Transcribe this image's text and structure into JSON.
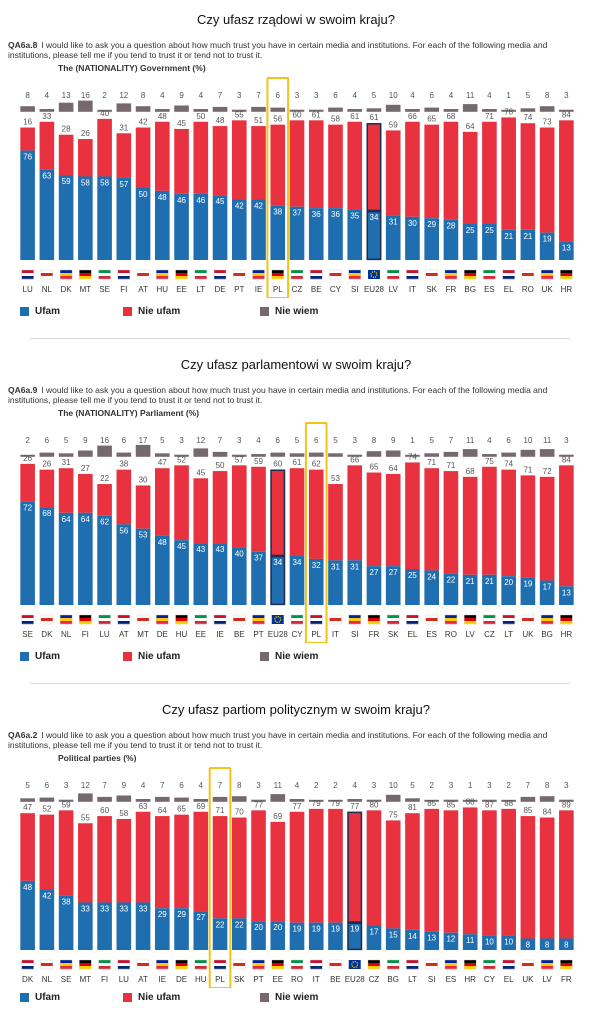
{
  "colors": {
    "trust": "#1f6fb0",
    "distrust": "#e8323f",
    "dk": "#75696f",
    "pl_frame": "#f2c318",
    "eu_frame": "#1d2d52"
  },
  "legend": {
    "trust": "Ufam",
    "distrust": "Nie ufam",
    "dk": "Nie wiem"
  },
  "panels": [
    {
      "title": "Czy ufasz rządowi w swoim kraju?",
      "qid": "QA6a.8",
      "question": "I would like to ask you a question about how much trust you have in certain media and institutions. For each of the following media and institutions, please tell me if you tend to trust it or tend not to trust it.",
      "subtitle": "The (NATIONALITY) Government  (%)",
      "chart_data": {
        "type": "bar",
        "stacked": true,
        "categories": [
          "LU",
          "NL",
          "DK",
          "MT",
          "SE",
          "FI",
          "AT",
          "HU",
          "EE",
          "LT",
          "DE",
          "PT",
          "IE",
          "PL",
          "CZ",
          "BE",
          "CY",
          "SI",
          "EU28",
          "LV",
          "IT",
          "SK",
          "FR",
          "BG",
          "ES",
          "EL",
          "RO",
          "UK",
          "HR"
        ],
        "series": [
          {
            "name": "Ufam",
            "values": [
              76,
              63,
              59,
              58,
              58,
              57,
              50,
              48,
              46,
              46,
              45,
              42,
              42,
              38,
              37,
              36,
              36,
              35,
              34,
              31,
              30,
              29,
              28,
              25,
              25,
              21,
              21,
              19,
              13
            ]
          },
          {
            "name": "Nie ufam",
            "values": [
              16,
              33,
              28,
              26,
              40,
              31,
              42,
              48,
              45,
              50,
              48,
              55,
              51,
              56,
              60,
              61,
              58,
              61,
              61,
              59,
              66,
              65,
              68,
              64,
              71,
              78,
              74,
              73,
              84
            ]
          },
          {
            "name": "Nie wiem",
            "values": [
              8,
              4,
              13,
              16,
              2,
              12,
              8,
              4,
              9,
              4,
              7,
              3,
              7,
              6,
              3,
              3,
              6,
              4,
              5,
              10,
              4,
              6,
              4,
              11,
              4,
              1,
              5,
              8,
              3
            ]
          }
        ],
        "highlight": "PL",
        "reference": "EU28"
      }
    },
    {
      "title": "Czy ufasz parlamentowi w swoim kraju?",
      "qid": "QA6a.9",
      "question": "I would like to ask you a question about how much trust you have in certain media and institutions. For each of the following media and institutions, please tell me if you tend to trust it or tend not to trust it.",
      "subtitle": "The (NATIONALITY) Parliament  (%)",
      "chart_data": {
        "type": "bar",
        "stacked": true,
        "categories": [
          "SE",
          "DK",
          "NL",
          "FI",
          "LU",
          "AT",
          "MT",
          "DE",
          "HU",
          "EE",
          "IE",
          "BE",
          "PT",
          "EU28",
          "CY",
          "PL",
          "IT",
          "SI",
          "FR",
          "SK",
          "EL",
          "ES",
          "RO",
          "LV",
          "CZ",
          "LT",
          "UK",
          "BG",
          "HR"
        ],
        "series": [
          {
            "name": "Ufam",
            "values": [
              72,
              68,
              64,
              64,
              62,
              56,
              53,
              48,
              45,
              43,
              43,
              40,
              37,
              34,
              34,
              32,
              31,
              31,
              27,
              27,
              25,
              24,
              22,
              21,
              21,
              20,
              19,
              17,
              13
            ]
          },
          {
            "name": "Nie ufam",
            "values": [
              26,
              26,
              31,
              27,
              22,
              38,
              30,
              47,
              52,
              45,
              50,
              57,
              59,
              60,
              61,
              62,
              53,
              66,
              65,
              64,
              74,
              71,
              71,
              68,
              75,
              74,
              71,
              72,
              84
            ]
          },
          {
            "name": "Nie wiem",
            "values": [
              2,
              6,
              5,
              9,
              16,
              6,
              17,
              5,
              3,
              12,
              7,
              3,
              4,
              6,
              5,
              6,
              5,
              3,
              8,
              9,
              1,
              5,
              7,
              11,
              4,
              6,
              10,
              11,
              3
            ]
          }
        ],
        "highlight": "PL",
        "reference": "EU28"
      }
    },
    {
      "title": "Czy ufasz partiom politycznym w swoim kraju?",
      "qid": "QA6a.2",
      "question": "I would like to ask you a question about how much trust you have in certain media and institutions. For each of the following media and institutions, please tell me if you tend to trust it or tend not to trust it.",
      "subtitle": "Political parties (%)",
      "chart_data": {
        "type": "bar",
        "stacked": true,
        "categories": [
          "DK",
          "NL",
          "SE",
          "MT",
          "FI",
          "LU",
          "AT",
          "IE",
          "DE",
          "HU",
          "PL",
          "SK",
          "PT",
          "EE",
          "RO",
          "IT",
          "BE",
          "EU28",
          "CZ",
          "BG",
          "LT",
          "SI",
          "ES",
          "HR",
          "CY",
          "EL",
          "UK",
          "LV",
          "FR"
        ],
        "series": [
          {
            "name": "Ufam",
            "values": [
              48,
              42,
              38,
              33,
              33,
              33,
              33,
              29,
              29,
              27,
              22,
              22,
              20,
              20,
              19,
              19,
              19,
              19,
              17,
              15,
              14,
              13,
              12,
              11,
              10,
              10,
              8,
              8,
              8
            ]
          },
          {
            "name": "Nie ufam",
            "values": [
              47,
              52,
              59,
              55,
              60,
              58,
              63,
              64,
              65,
              69,
              71,
              70,
              77,
              69,
              77,
              79,
              79,
              77,
              80,
              75,
              81,
              85,
              85,
              88,
              87,
              88,
              85,
              84,
              89
            ]
          },
          {
            "name": "Nie wiem",
            "values": [
              5,
              6,
              3,
              12,
              7,
              9,
              4,
              7,
              6,
              4,
              7,
              8,
              3,
              11,
              4,
              2,
              2,
              4,
              3,
              10,
              5,
              2,
              3,
              1,
              3,
              2,
              7,
              8,
              3
            ]
          }
        ],
        "highlight": "PL",
        "reference": "EU28"
      }
    }
  ]
}
